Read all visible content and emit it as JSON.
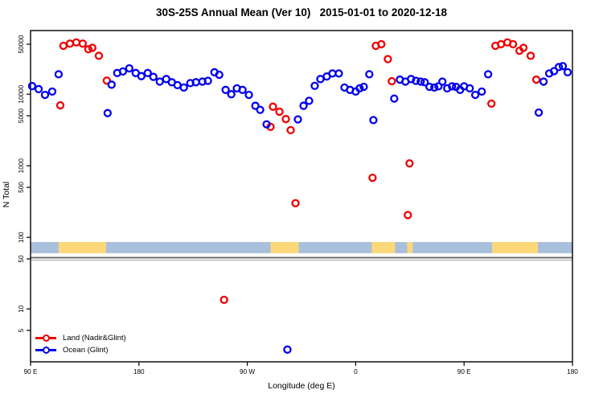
{
  "chart_data": {
    "type": "scatter",
    "title": "30S-25S Annual Mean (Ver 10)   2015-01-01 to 2020-12-18",
    "xlabel": "Longitude (deg E)",
    "ylabel": "N Total",
    "y_scale": "log",
    "y_axis": {
      "ticks": [
        {
          "n": 50000,
          "label": "50000"
        },
        {
          "n": 10000,
          "label": "10000"
        },
        {
          "n": 5000,
          "label": "5000"
        },
        {
          "n": 1000,
          "label": "1000"
        },
        {
          "n": 500,
          "label": "500"
        },
        {
          "n": 100,
          "label": "100"
        },
        {
          "n": 50,
          "label": "50"
        },
        {
          "n": 10,
          "label": "10"
        },
        {
          "n": 5,
          "label": "5"
        }
      ],
      "range_n": [
        1.8,
        78000
      ]
    },
    "x_axis": {
      "note": "longitude axis spans 450 deg starting at 90E and wrapping past the dateline",
      "range_deg": [
        90,
        540
      ],
      "ticks": [
        {
          "deg": 90,
          "label": "90 E"
        },
        {
          "deg": 180,
          "label": "180"
        },
        {
          "deg": 270,
          "label": "90 W"
        },
        {
          "deg": 360,
          "label": "0"
        },
        {
          "deg": 450,
          "label": "90 E"
        },
        {
          "deg": 540,
          "label": "180"
        }
      ]
    },
    "legend": [
      {
        "name": "Land (Nadir&Glint)",
        "color": "#ee0000"
      },
      {
        "name": "Ocean (Glint)",
        "color": "#0000ee"
      }
    ],
    "map_band": {
      "ocean_color": "#a9c0dd",
      "land_color": "#fcd87a",
      "n_range": [
        60,
        86
      ],
      "land_segments_deg": [
        [
          113.3,
          152.7
        ],
        [
          289.3,
          312.7
        ],
        [
          373.3,
          392.7
        ],
        [
          402.7,
          407.3
        ],
        [
          473.3,
          511.3
        ]
      ]
    },
    "separator_line_n": 50,
    "series": [
      {
        "name": "Land (Nadir&Glint)",
        "color": "#ee0000",
        "points": [
          {
            "lon": 117.3,
            "n": 47500
          },
          {
            "lon": 122.7,
            "n": 51000
          },
          {
            "lon": 128,
            "n": 53000
          },
          {
            "lon": 133.3,
            "n": 51000
          },
          {
            "lon": 138,
            "n": 42500
          },
          {
            "lon": 141.3,
            "n": 44500
          },
          {
            "lon": 146.7,
            "n": 34500
          },
          {
            "lon": 153.3,
            "n": 15500
          },
          {
            "lon": 114.7,
            "n": 7000
          },
          {
            "lon": 289.3,
            "n": 3500
          },
          {
            "lon": 291.3,
            "n": 6700
          },
          {
            "lon": 296.7,
            "n": 5700
          },
          {
            "lon": 302,
            "n": 4500
          },
          {
            "lon": 306,
            "n": 3150
          },
          {
            "lon": 310,
            "n": 300
          },
          {
            "lon": 374,
            "n": 680
          },
          {
            "lon": 376.7,
            "n": 47500
          },
          {
            "lon": 381.3,
            "n": 50000
          },
          {
            "lon": 386.7,
            "n": 31000
          },
          {
            "lon": 390,
            "n": 15200
          },
          {
            "lon": 404.7,
            "n": 1080
          },
          {
            "lon": 403.3,
            "n": 205
          },
          {
            "lon": 476,
            "n": 47500
          },
          {
            "lon": 480.7,
            "n": 50000
          },
          {
            "lon": 486,
            "n": 53000
          },
          {
            "lon": 490.7,
            "n": 50000
          },
          {
            "lon": 496,
            "n": 40500
          },
          {
            "lon": 499.3,
            "n": 44500
          },
          {
            "lon": 505.3,
            "n": 34500
          },
          {
            "lon": 510,
            "n": 16000
          },
          {
            "lon": 472.7,
            "n": 7400
          },
          {
            "lon": 250.7,
            "n": 13.4
          }
        ]
      },
      {
        "name": "Ocean (Glint)",
        "color": "#0000ee",
        "points": [
          {
            "lon": 91.3,
            "n": 13000
          },
          {
            "lon": 96.7,
            "n": 11800
          },
          {
            "lon": 102,
            "n": 9800
          },
          {
            "lon": 108,
            "n": 10900
          },
          {
            "lon": 113.3,
            "n": 19000
          },
          {
            "lon": 154,
            "n": 5450
          },
          {
            "lon": 157.3,
            "n": 13600
          },
          {
            "lon": 162,
            "n": 19800
          },
          {
            "lon": 166.7,
            "n": 20800
          },
          {
            "lon": 172,
            "n": 23000
          },
          {
            "lon": 177.3,
            "n": 19800
          },
          {
            "lon": 182,
            "n": 17900
          },
          {
            "lon": 187.3,
            "n": 19800
          },
          {
            "lon": 192,
            "n": 17500
          },
          {
            "lon": 197.3,
            "n": 15000
          },
          {
            "lon": 202.7,
            "n": 16300
          },
          {
            "lon": 207.3,
            "n": 14700
          },
          {
            "lon": 212,
            "n": 13400
          },
          {
            "lon": 217.3,
            "n": 12400
          },
          {
            "lon": 222.7,
            "n": 14300
          },
          {
            "lon": 227.3,
            "n": 14700
          },
          {
            "lon": 232.7,
            "n": 15000
          },
          {
            "lon": 237.3,
            "n": 15400
          },
          {
            "lon": 242.7,
            "n": 20300
          },
          {
            "lon": 246.7,
            "n": 18700
          },
          {
            "lon": 252,
            "n": 11500
          },
          {
            "lon": 256.7,
            "n": 10000
          },
          {
            "lon": 261.3,
            "n": 12100
          },
          {
            "lon": 266,
            "n": 11500
          },
          {
            "lon": 271.3,
            "n": 9800
          },
          {
            "lon": 276.7,
            "n": 6900
          },
          {
            "lon": 280.7,
            "n": 6050
          },
          {
            "lon": 286,
            "n": 3800
          },
          {
            "lon": 312,
            "n": 4450
          },
          {
            "lon": 316.7,
            "n": 6900
          },
          {
            "lon": 321.3,
            "n": 8100
          },
          {
            "lon": 326,
            "n": 13100
          },
          {
            "lon": 330.7,
            "n": 16300
          },
          {
            "lon": 336,
            "n": 17700
          },
          {
            "lon": 340.7,
            "n": 19500
          },
          {
            "lon": 346,
            "n": 19500
          },
          {
            "lon": 350.7,
            "n": 12400
          },
          {
            "lon": 355.3,
            "n": 11500
          },
          {
            "lon": 360,
            "n": 10900
          },
          {
            "lon": 363.3,
            "n": 12100
          },
          {
            "lon": 366.7,
            "n": 12700
          },
          {
            "lon": 371.3,
            "n": 19000
          },
          {
            "lon": 374.7,
            "n": 4350
          },
          {
            "lon": 392,
            "n": 8700
          },
          {
            "lon": 396.7,
            "n": 16000
          },
          {
            "lon": 401.3,
            "n": 15000
          },
          {
            "lon": 406,
            "n": 16300
          },
          {
            "lon": 410,
            "n": 15400
          },
          {
            "lon": 414,
            "n": 15000
          },
          {
            "lon": 417.3,
            "n": 14700
          },
          {
            "lon": 421.3,
            "n": 12700
          },
          {
            "lon": 425.3,
            "n": 12400
          },
          {
            "lon": 428.7,
            "n": 12900
          },
          {
            "lon": 432,
            "n": 15000
          },
          {
            "lon": 436,
            "n": 12100
          },
          {
            "lon": 440,
            "n": 12900
          },
          {
            "lon": 443.3,
            "n": 12700
          },
          {
            "lon": 446.7,
            "n": 11500
          },
          {
            "lon": 450,
            "n": 12900
          },
          {
            "lon": 454.7,
            "n": 12100
          },
          {
            "lon": 459.3,
            "n": 9800
          },
          {
            "lon": 464.7,
            "n": 10900
          },
          {
            "lon": 470,
            "n": 19000
          },
          {
            "lon": 512,
            "n": 5550
          },
          {
            "lon": 516,
            "n": 15000
          },
          {
            "lon": 520.7,
            "n": 19500
          },
          {
            "lon": 524.7,
            "n": 21000
          },
          {
            "lon": 528.7,
            "n": 24000
          },
          {
            "lon": 532,
            "n": 24700
          },
          {
            "lon": 536,
            "n": 20300
          },
          {
            "lon": 303.3,
            "n": 2.7
          }
        ]
      }
    ]
  }
}
